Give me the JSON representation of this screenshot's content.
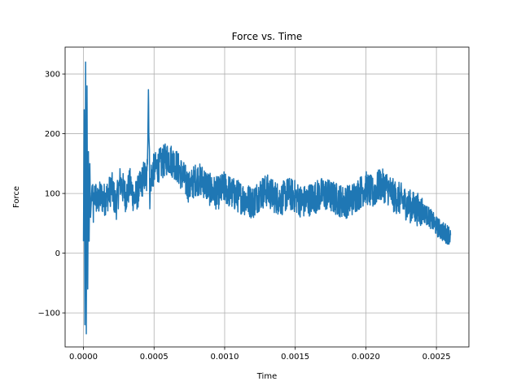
{
  "chart_data": {
    "type": "line",
    "title": "Force vs. Time",
    "xlabel": "Time",
    "ylabel": "Force",
    "xlim": [
      -0.00013,
      0.00273
    ],
    "ylim": [
      -157,
      345
    ],
    "x_ticks": [
      0.0,
      0.0005,
      0.001,
      0.0015,
      0.002,
      0.0025
    ],
    "x_tick_labels": [
      "0.0000",
      "0.0005",
      "0.0010",
      "0.0015",
      "0.0020",
      "0.0025"
    ],
    "y_ticks": [
      -100,
      0,
      100,
      200,
      300
    ],
    "y_tick_labels": [
      "−100",
      "0",
      "100",
      "200",
      "300"
    ],
    "grid": true,
    "legend": "none",
    "series": [
      {
        "color": "#1f77b4",
        "x": [
          0.0,
          5e-06,
          1e-05,
          1.5e-05,
          2e-05,
          2.5e-05,
          3e-05,
          3.5e-05,
          4e-05,
          4.5e-05,
          5e-05,
          6e-05,
          7e-05,
          8e-05,
          0.0001,
          0.00012,
          0.00015,
          0.00018,
          0.0002,
          0.00023,
          0.00026,
          0.0003,
          0.00033,
          0.00036,
          0.0004,
          0.00043,
          0.00045,
          0.00046,
          0.00047,
          0.00048,
          0.0005,
          0.00055,
          0.0006,
          0.00065,
          0.0007,
          0.00075,
          0.0008,
          0.00085,
          0.0009,
          0.00095,
          0.001,
          0.00105,
          0.0011,
          0.00115,
          0.0012,
          0.00125,
          0.0013,
          0.00135,
          0.0014,
          0.00145,
          0.0015,
          0.00155,
          0.0016,
          0.00165,
          0.0017,
          0.00175,
          0.0018,
          0.00185,
          0.0019,
          0.00195,
          0.002,
          0.00205,
          0.0021,
          0.00215,
          0.0022,
          0.00225,
          0.0023,
          0.00235,
          0.0024,
          0.00245,
          0.0025,
          0.00255,
          0.0026
        ],
        "y": [
          20,
          240,
          -120,
          320,
          -135,
          280,
          -60,
          170,
          20,
          150,
          60,
          110,
          70,
          100,
          85,
          95,
          90,
          100,
          110,
          80,
          120,
          95,
          115,
          90,
          110,
          130,
          120,
          275,
          100,
          130,
          140,
          150,
          160,
          150,
          130,
          110,
          125,
          120,
          105,
          100,
          110,
          100,
          95,
          90,
          85,
          100,
          105,
          95,
          90,
          100,
          95,
          85,
          90,
          95,
          100,
          95,
          90,
          85,
          90,
          100,
          110,
          100,
          115,
          110,
          95,
          90,
          80,
          75,
          70,
          60,
          45,
          35,
          30
        ]
      }
    ],
    "noise_amplitude": 28
  }
}
